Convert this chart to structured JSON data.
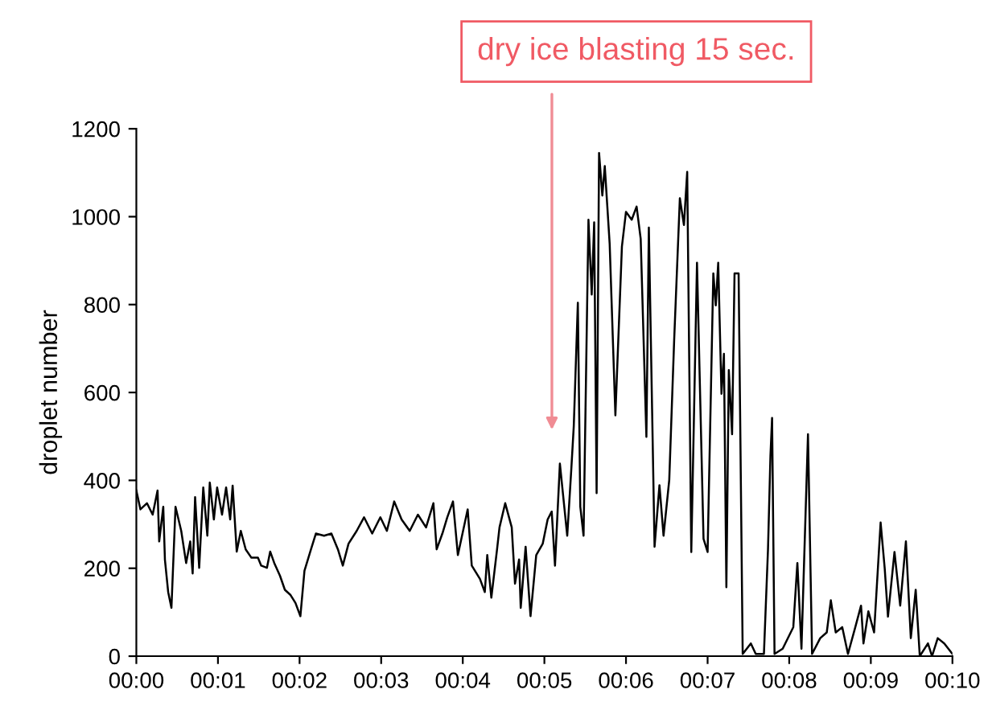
{
  "chart_data": {
    "type": "line",
    "ylabel": "droplet number",
    "annotations": [
      "dry ice blasting 15 sec."
    ],
    "xlim": [
      0,
      10
    ],
    "ylim": [
      0,
      1200
    ],
    "xticks": [
      {
        "value": 0,
        "label": "00:00"
      },
      {
        "value": 1,
        "label": "00:01"
      },
      {
        "value": 2,
        "label": "00:02"
      },
      {
        "value": 3,
        "label": "00:03"
      },
      {
        "value": 4,
        "label": "00:04"
      },
      {
        "value": 5,
        "label": "00:05"
      },
      {
        "value": 6,
        "label": "00:06"
      },
      {
        "value": 7,
        "label": "00:07"
      },
      {
        "value": 8,
        "label": "00:08"
      },
      {
        "value": 9,
        "label": "00:09"
      },
      {
        "value": 10,
        "label": "00:10"
      }
    ],
    "yticks": [
      0,
      200,
      400,
      600,
      800,
      1000,
      1200
    ],
    "grid": false,
    "legend": false,
    "marker": "none",
    "line_style": "solid",
    "x": [
      0,
      0.05,
      0.13,
      0.2,
      0.26,
      0.28,
      0.33,
      0.35,
      0.39,
      0.43,
      0.48,
      0.55,
      0.61,
      0.66,
      0.69,
      0.72,
      0.77,
      0.82,
      0.87,
      0.9,
      0.95,
      0.99,
      1.05,
      1.1,
      1.15,
      1.18,
      1.23,
      1.28,
      1.34,
      1.41,
      1.49,
      1.53,
      1.6,
      1.64,
      1.69,
      1.76,
      1.82,
      1.89,
      1.95,
      2.01,
      2.06,
      2.14,
      2.2,
      2.3,
      2.39,
      2.47,
      2.53,
      2.6,
      2.7,
      2.79,
      2.89,
      2.99,
      3.07,
      3.16,
      3.25,
      3.35,
      3.45,
      3.55,
      3.64,
      3.68,
      3.75,
      3.81,
      3.88,
      3.94,
      4.06,
      4.11,
      4.21,
      4.27,
      4.3,
      4.35,
      4.42,
      4.45,
      4.52,
      4.6,
      4.64,
      4.69,
      4.71,
      4.77,
      4.83,
      4.9,
      4.98,
      5.04,
      5.09,
      5.13,
      5.19,
      5.28,
      5.33,
      5.36,
      5.41,
      5.44,
      5.48,
      5.54,
      5.58,
      5.61,
      5.64,
      5.67,
      5.71,
      5.74,
      5.8,
      5.87,
      5.95,
      6.0,
      6.07,
      6.13,
      6.18,
      6.25,
      6.28,
      6.35,
      6.41,
      6.46,
      6.53,
      6.59,
      6.66,
      6.71,
      6.75,
      6.8,
      6.87,
      6.95,
      7.0,
      7.07,
      7.1,
      7.13,
      7.17,
      7.2,
      7.23,
      7.26,
      7.3,
      7.33,
      7.38,
      7.43,
      7.53,
      7.59,
      7.69,
      7.74,
      7.77,
      7.79,
      7.82,
      7.92,
      8.05,
      8.1,
      8.15,
      8.23,
      8.28,
      8.38,
      8.46,
      8.51,
      8.57,
      8.65,
      8.72,
      8.81,
      8.88,
      8.91,
      8.97,
      9.04,
      9.12,
      9.17,
      9.21,
      9.29,
      9.36,
      9.43,
      9.49,
      9.55,
      9.6,
      9.7,
      9.75,
      9.82,
      9.9,
      10.0
    ],
    "series": [
      {
        "color": "#000000",
        "values": [
          377,
          334,
          348,
          322,
          377,
          261,
          340,
          220,
          146,
          110,
          340,
          285,
          212,
          261,
          188,
          362,
          201,
          384,
          274,
          395,
          311,
          384,
          322,
          384,
          311,
          388,
          238,
          285,
          243,
          224,
          224,
          206,
          201,
          238,
          212,
          183,
          151,
          139,
          121,
          91,
          194,
          243,
          279,
          274,
          279,
          243,
          206,
          256,
          285,
          316,
          279,
          316,
          285,
          352,
          311,
          285,
          322,
          293,
          348,
          243,
          279,
          316,
          352,
          230,
          334,
          206,
          176,
          146,
          230,
          133,
          243,
          293,
          348,
          293,
          165,
          220,
          110,
          249,
          91,
          230,
          256,
          311,
          329,
          206,
          438,
          274,
          426,
          523,
          804,
          340,
          274,
          993,
          823,
          987,
          371,
          1145,
          1048,
          1115,
          938,
          548,
          932,
          1011,
          993,
          1023,
          950,
          499,
          975,
          249,
          389,
          274,
          401,
          718,
          1042,
          981,
          1102,
          237,
          895,
          267,
          237,
          871,
          798,
          895,
          597,
          688,
          157,
          651,
          505,
          871,
          871,
          5,
          29,
          5,
          5,
          243,
          456,
          542,
          5,
          17,
          66,
          212,
          17,
          505,
          5,
          41,
          54,
          127,
          54,
          66,
          5,
          66,
          115,
          29,
          102,
          54,
          304,
          200,
          90,
          237,
          115,
          261,
          41,
          151,
          0,
          29,
          0,
          41,
          29,
          5
        ]
      }
    ]
  }
}
